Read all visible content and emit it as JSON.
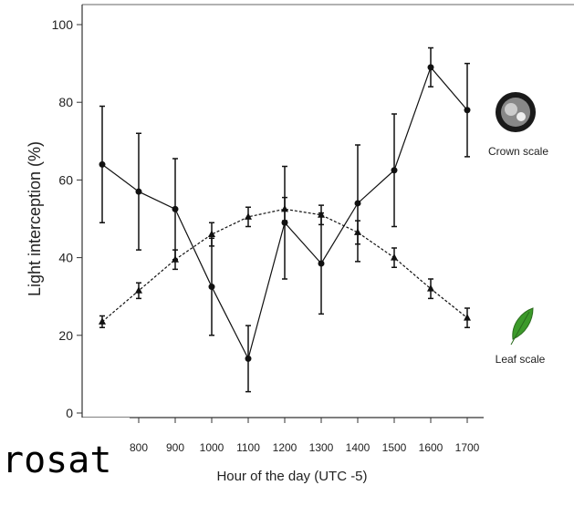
{
  "chart_data": {
    "type": "line",
    "ylabel": "Light interception (%)",
    "xlabel": "Hour of the day (UTC -5)",
    "categories": [
      null,
      "800",
      "900",
      "1000",
      "1100",
      "1200",
      "1300",
      "1400",
      "1500",
      "1600",
      "1700"
    ],
    "ylim": [
      0,
      100
    ],
    "yticks": [
      0,
      20,
      40,
      60,
      80,
      100
    ],
    "series": [
      {
        "color": "#111111",
        "marker": "circle",
        "dash": false,
        "values": [
          64,
          57,
          52.5,
          32.5,
          14,
          49,
          38.5,
          54,
          62.5,
          89,
          78
        ],
        "errors": [
          15,
          15,
          13,
          12.5,
          8.5,
          14.5,
          13,
          15,
          14.5,
          5,
          12
        ]
      },
      {
        "color": "#111111",
        "marker": "triangle",
        "dash": true,
        "values": [
          23.5,
          31.5,
          39.5,
          46,
          50.5,
          52.5,
          51,
          46.5,
          40,
          32,
          24.5
        ],
        "errors": [
          1.5,
          2,
          2.5,
          3,
          2.5,
          3,
          2.5,
          3,
          2.5,
          2.5,
          2.5
        ]
      }
    ],
    "annotations": [
      "Crown scale",
      "Leaf scale"
    ],
    "overlay_text": "rosat"
  }
}
